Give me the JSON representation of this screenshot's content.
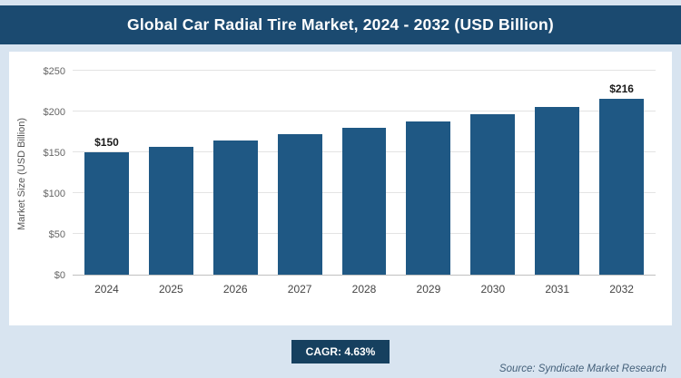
{
  "header": {
    "title": "Global Car Radial Tire Market, 2024 - 2032 (USD Billion)"
  },
  "chart_data": {
    "type": "bar",
    "title": "Global Car Radial Tire Market, 2024 - 2032 (USD Billion)",
    "categories": [
      "2024",
      "2025",
      "2026",
      "2027",
      "2028",
      "2029",
      "2030",
      "2031",
      "2032"
    ],
    "values": [
      150,
      157,
      164,
      172,
      180,
      188,
      197,
      206,
      216
    ],
    "value_labels": [
      "$150",
      "",
      "",
      "",
      "",
      "",
      "",
      "",
      "$216"
    ],
    "xlabel": "",
    "ylabel": "Market Size (USD Billion)",
    "ylim": [
      0,
      250
    ],
    "yticks": [
      0,
      50,
      100,
      150,
      200,
      250
    ],
    "ytick_labels": [
      "$0",
      "$50",
      "$100",
      "$150",
      "$200",
      "$250"
    ],
    "grid": true,
    "legend": false,
    "bar_color": "#1f5884"
  },
  "footer": {
    "cagr_label": "CAGR: 4.63%",
    "source": "Source: Syndicate Market Research"
  },
  "colors": {
    "page_bg": "#d8e4f0",
    "header_bg": "#1b4a70",
    "bar": "#1f5884",
    "badge_bg": "#16405f"
  }
}
